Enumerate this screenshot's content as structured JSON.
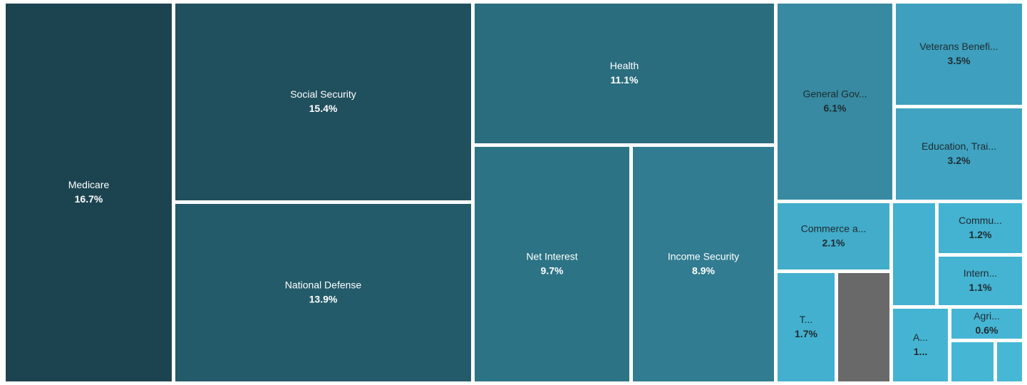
{
  "chart_data": {
    "type": "treemap",
    "unit": "%",
    "tiles": [
      {
        "id": "medicare",
        "label": "Medicare",
        "value_text": "16.7%",
        "value": 16.7,
        "color": "#1c4450",
        "text_color": "#ffffff"
      },
      {
        "id": "social-security",
        "label": "Social Security",
        "value_text": "15.4%",
        "value": 15.4,
        "color": "#204f5d",
        "text_color": "#ffffff"
      },
      {
        "id": "national-defense",
        "label": "National Defense",
        "value_text": "13.9%",
        "value": 13.9,
        "color": "#235b6a",
        "text_color": "#ffffff"
      },
      {
        "id": "health",
        "label": "Health",
        "value_text": "11.1%",
        "value": 11.1,
        "color": "#2a6d7f",
        "text_color": "#ffffff"
      },
      {
        "id": "net-interest",
        "label": "Net Interest",
        "value_text": "9.7%",
        "value": 9.7,
        "color": "#2c7385",
        "text_color": "#ffffff"
      },
      {
        "id": "income-security",
        "label": "Income Security",
        "value_text": "8.9%",
        "value": 8.9,
        "color": "#317c91",
        "text_color": "#ffffff"
      },
      {
        "id": "general-government",
        "label": "General Gov...",
        "value_text": "6.1%",
        "value": 6.1,
        "color": "#378aa2",
        "text_color": "#1f2b30"
      },
      {
        "id": "veterans-benefits",
        "label": "Veterans Benefi...",
        "value_text": "3.5%",
        "value": 3.5,
        "color": "#3ea0be",
        "text_color": "#1f2b30"
      },
      {
        "id": "education-training",
        "label": "Education, Trai...",
        "value_text": "3.2%",
        "value": 3.2,
        "color": "#3fa3c1",
        "text_color": "#1f2b30"
      },
      {
        "id": "commerce",
        "label": "Commerce a...",
        "value_text": "2.1%",
        "value": 2.1,
        "color": "#42acca",
        "text_color": "#1f2b30"
      },
      {
        "id": "transportation",
        "label": "T...",
        "value_text": "1.7%",
        "value": 1.7,
        "color": "#43b0cf",
        "text_color": "#1f2b30"
      },
      {
        "id": "other-gray",
        "label": "",
        "value_text": "",
        "color": "#696969",
        "text_color": "#ffffff"
      },
      {
        "id": "unlabeled-blue",
        "label": "",
        "value_text": "",
        "color": "#44b1d0",
        "text_color": "#1f2b30"
      },
      {
        "id": "community",
        "label": "Commu...",
        "value_text": "1.2%",
        "value": 1.2,
        "color": "#44b2d1",
        "text_color": "#1f2b30"
      },
      {
        "id": "international",
        "label": "Intern...",
        "value_text": "1.1%",
        "value": 1.1,
        "color": "#45b3d2",
        "text_color": "#1f2b30"
      },
      {
        "id": "admin",
        "label": "A...",
        "value_text": "1...",
        "color": "#45b4d3",
        "text_color": "#1f2b30"
      },
      {
        "id": "agriculture",
        "label": "Agri...",
        "value_text": "0.6%",
        "value": 0.6,
        "color": "#46b5d4",
        "text_color": "#1f2b30"
      },
      {
        "id": "small-a",
        "label": "",
        "value_text": "",
        "color": "#46b6d5",
        "text_color": "#1f2b30"
      },
      {
        "id": "small-b",
        "label": "",
        "value_text": "",
        "color": "#47b7d6",
        "text_color": "#1f2b30"
      }
    ]
  }
}
